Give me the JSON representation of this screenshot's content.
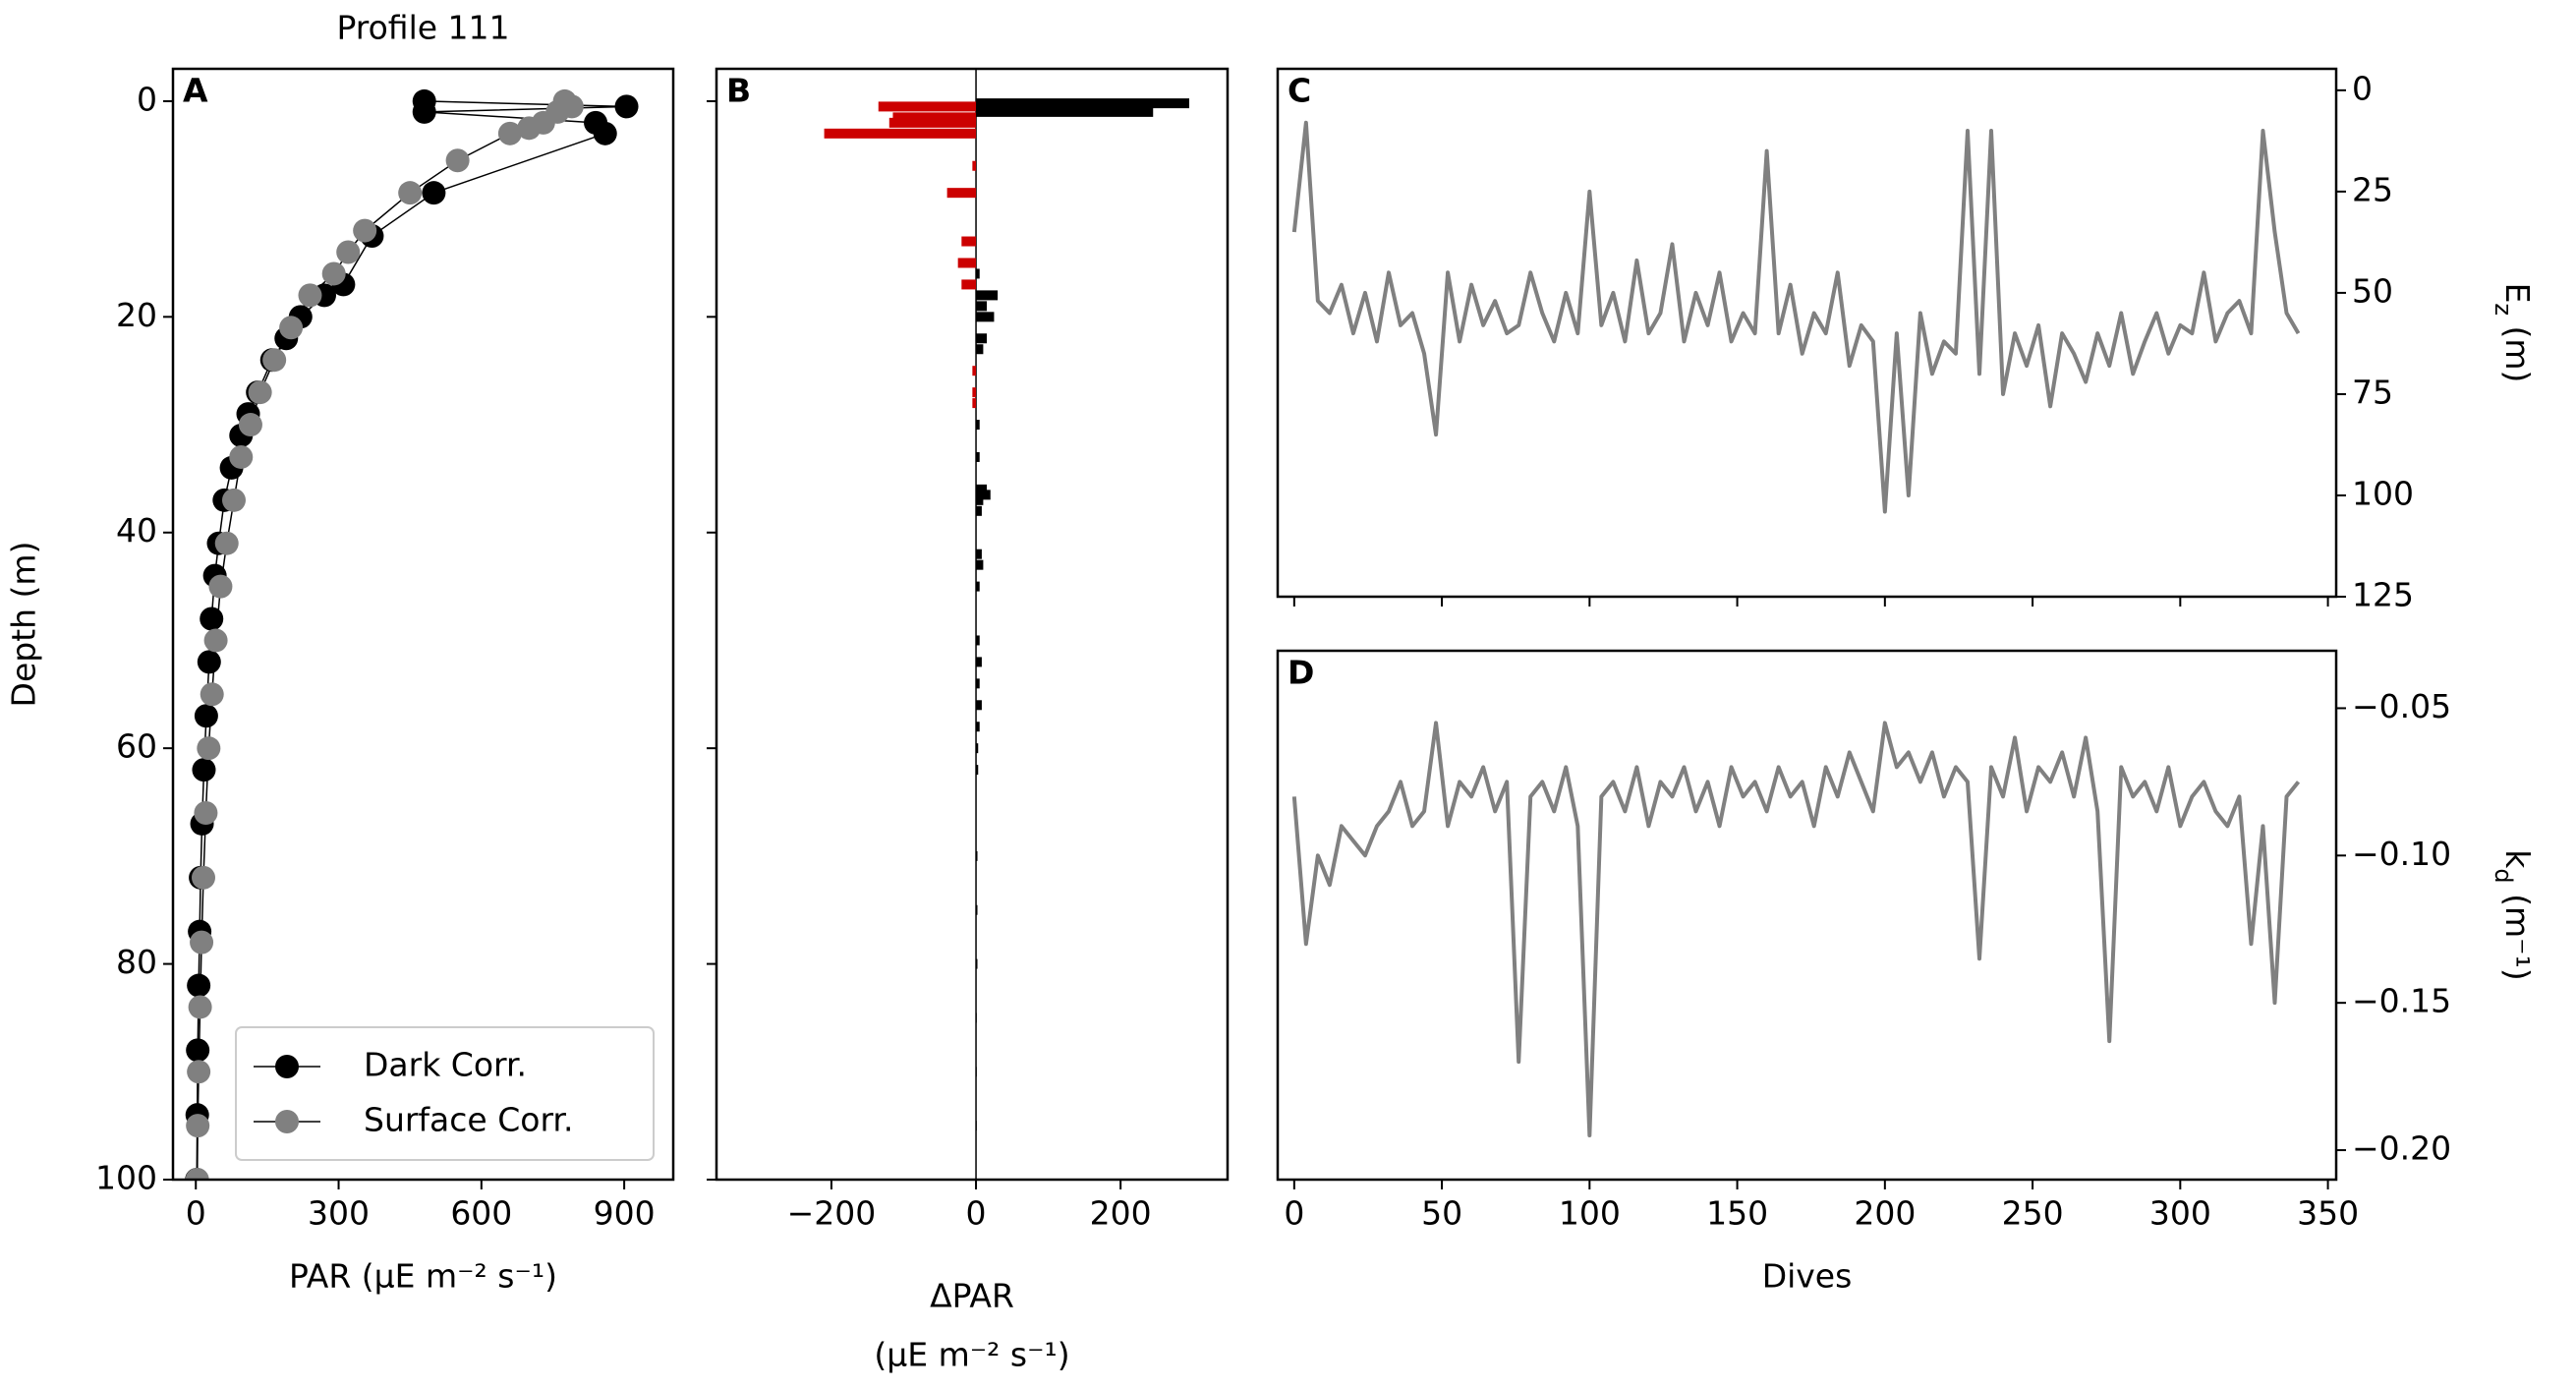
{
  "chart_data": [
    {
      "type": "profile",
      "title": "Profile 111",
      "panel": "A",
      "xlabel": "PAR (μE m⁻² s⁻¹)",
      "ylabel": "Depth (m)",
      "yaxis_side": "left",
      "xlim": [
        -48,
        1003
      ],
      "ylim": [
        100,
        -3
      ],
      "xticks": [
        0,
        300,
        600,
        900
      ],
      "yticks": [
        0,
        20,
        40,
        60,
        80,
        100
      ],
      "legend": "lower right",
      "series": [
        {
          "name": "Dark Corr.",
          "color": "#000000",
          "x": [
            480,
            905,
            480,
            840,
            860,
            500,
            370,
            310,
            270,
            220,
            190,
            160,
            130,
            110,
            95,
            75,
            60,
            48,
            40,
            33,
            28,
            22,
            17,
            13,
            10,
            8,
            6,
            4,
            3,
            2
          ],
          "values": [
            0,
            0.5,
            1,
            2,
            3,
            8.5,
            12.5,
            17,
            18,
            20,
            22,
            24,
            27,
            29,
            31,
            34,
            37,
            41,
            44,
            48,
            52,
            57,
            62,
            67,
            72,
            77,
            82,
            88,
            94,
            100
          ]
        },
        {
          "name": "Surface Corr.",
          "color": "#808080",
          "x": [
            775,
            790,
            760,
            730,
            700,
            660,
            550,
            450,
            355,
            320,
            290,
            240,
            200,
            165,
            135,
            115,
            95,
            80,
            65,
            52,
            42,
            34,
            27,
            21,
            16,
            12,
            9,
            6,
            4,
            3
          ],
          "values": [
            0,
            0.5,
            1,
            2,
            2.5,
            3,
            5.5,
            8.5,
            12,
            14,
            16,
            18,
            21,
            24,
            27,
            30,
            33,
            37,
            41,
            45,
            50,
            55,
            60,
            66,
            72,
            78,
            84,
            90,
            95,
            100
          ]
        }
      ]
    },
    {
      "type": "hbar",
      "panel": "B",
      "xlabel": [
        "ΔPAR",
        "(μE m⁻² s⁻¹)"
      ],
      "yaxis_side": "left",
      "ytick_labels": false,
      "xlim": [
        -359,
        348
      ],
      "ylim": [
        100,
        -3
      ],
      "xticks": [
        {
          "value": -200,
          "label": "−200"
        },
        0,
        200
      ],
      "yticks": [
        0,
        20,
        40,
        60,
        80,
        100
      ],
      "colors": {
        "positive": "#000000",
        "negative": "#cc0000"
      },
      "depths": [
        0.2,
        0.5,
        1,
        1.5,
        2,
        3,
        6,
        8.5,
        13,
        15,
        16,
        17,
        18,
        19,
        20,
        22,
        23,
        25,
        27,
        28,
        30,
        33,
        36,
        36.5,
        37,
        38,
        42,
        43,
        45,
        50,
        52,
        54,
        56,
        58,
        60,
        62,
        70,
        75,
        80,
        85,
        90,
        95
      ],
      "values": [
        295,
        -135,
        245,
        -115,
        -120,
        -210,
        -5,
        -40,
        -20,
        -25,
        5,
        -20,
        30,
        15,
        25,
        15,
        10,
        -5,
        -5,
        -5,
        5,
        5,
        15,
        20,
        10,
        8,
        8,
        10,
        5,
        5,
        8,
        5,
        8,
        5,
        3,
        3,
        2,
        2,
        2,
        1,
        1,
        1
      ]
    },
    {
      "type": "line",
      "panel": "C",
      "ylabel": [
        "E",
        "z",
        " (m)"
      ],
      "yaxis_side": "right",
      "xtick_labels": false,
      "xlim": [
        -5.6,
        352.8
      ],
      "ylim": [
        125,
        -5.3
      ],
      "xticks": [
        0,
        50,
        100,
        150,
        200,
        250,
        300,
        350
      ],
      "yticks": [
        0,
        25,
        50,
        75,
        100,
        125
      ],
      "color": "#808080",
      "x": [
        0,
        4,
        8,
        12,
        16,
        20,
        24,
        28,
        32,
        36,
        40,
        44,
        48,
        52,
        56,
        60,
        64,
        68,
        72,
        76,
        80,
        84,
        88,
        92,
        96,
        100,
        104,
        108,
        112,
        116,
        120,
        124,
        128,
        132,
        136,
        140,
        144,
        148,
        152,
        156,
        160,
        164,
        168,
        172,
        176,
        180,
        184,
        188,
        192,
        196,
        200,
        204,
        208,
        212,
        216,
        220,
        224,
        228,
        232,
        236,
        240,
        244,
        248,
        252,
        256,
        260,
        264,
        268,
        272,
        276,
        280,
        284,
        288,
        292,
        296,
        300,
        304,
        308,
        312,
        316,
        320,
        324,
        328,
        332,
        336,
        340
      ],
      "values": [
        35,
        8,
        52,
        55,
        48,
        60,
        50,
        62,
        45,
        58,
        55,
        65,
        85,
        45,
        62,
        48,
        58,
        52,
        60,
        58,
        45,
        55,
        62,
        50,
        60,
        25,
        58,
        50,
        62,
        42,
        60,
        55,
        38,
        62,
        50,
        58,
        45,
        62,
        55,
        60,
        15,
        60,
        48,
        65,
        55,
        60,
        45,
        68,
        58,
        62,
        104,
        60,
        100,
        55,
        70,
        62,
        65,
        10,
        70,
        10,
        75,
        60,
        68,
        58,
        78,
        60,
        65,
        72,
        60,
        68,
        55,
        70,
        62,
        55,
        65,
        58,
        60,
        45,
        62,
        55,
        52,
        60,
        10,
        35,
        55,
        60
      ]
    },
    {
      "type": "line",
      "panel": "D",
      "xlabel": "Dives",
      "ylabel": [
        "k",
        "d",
        " (m⁻¹)"
      ],
      "yaxis_side": "right",
      "xlim": [
        -5.6,
        352.8
      ],
      "ylim": [
        -0.21,
        -0.0305
      ],
      "xticks": [
        0,
        50,
        100,
        150,
        200,
        250,
        300,
        350
      ],
      "yticks": [
        {
          "value": -0.05,
          "label": "−0.05"
        },
        {
          "value": -0.1,
          "label": "−0.10"
        },
        {
          "value": -0.15,
          "label": "−0.15"
        },
        {
          "value": -0.2,
          "label": "−0.20"
        }
      ],
      "color": "#808080",
      "x": [
        0,
        4,
        8,
        12,
        16,
        20,
        24,
        28,
        32,
        36,
        40,
        44,
        48,
        52,
        56,
        60,
        64,
        68,
        72,
        76,
        80,
        84,
        88,
        92,
        96,
        100,
        104,
        108,
        112,
        116,
        120,
        124,
        128,
        132,
        136,
        140,
        144,
        148,
        152,
        156,
        160,
        164,
        168,
        172,
        176,
        180,
        184,
        188,
        192,
        196,
        200,
        204,
        208,
        212,
        216,
        220,
        224,
        228,
        232,
        236,
        240,
        244,
        248,
        252,
        256,
        260,
        264,
        268,
        272,
        276,
        280,
        284,
        288,
        292,
        296,
        300,
        304,
        308,
        312,
        316,
        320,
        324,
        328,
        332,
        336,
        340
      ],
      "values": [
        -0.08,
        -0.13,
        -0.1,
        -0.11,
        -0.09,
        -0.095,
        -0.1,
        -0.09,
        -0.085,
        -0.075,
        -0.09,
        -0.085,
        -0.055,
        -0.09,
        -0.075,
        -0.08,
        -0.07,
        -0.085,
        -0.075,
        -0.17,
        -0.08,
        -0.075,
        -0.085,
        -0.07,
        -0.09,
        -0.195,
        -0.08,
        -0.075,
        -0.085,
        -0.07,
        -0.09,
        -0.075,
        -0.08,
        -0.07,
        -0.085,
        -0.075,
        -0.09,
        -0.07,
        -0.08,
        -0.075,
        -0.085,
        -0.07,
        -0.08,
        -0.075,
        -0.09,
        -0.07,
        -0.08,
        -0.065,
        -0.075,
        -0.085,
        -0.055,
        -0.07,
        -0.065,
        -0.075,
        -0.065,
        -0.08,
        -0.07,
        -0.075,
        -0.135,
        -0.07,
        -0.08,
        -0.06,
        -0.085,
        -0.07,
        -0.075,
        -0.065,
        -0.08,
        -0.06,
        -0.085,
        -0.163,
        -0.07,
        -0.08,
        -0.075,
        -0.085,
        -0.07,
        -0.09,
        -0.08,
        -0.075,
        -0.085,
        -0.09,
        -0.08,
        -0.13,
        -0.09,
        -0.15,
        -0.08,
        -0.075
      ]
    }
  ]
}
